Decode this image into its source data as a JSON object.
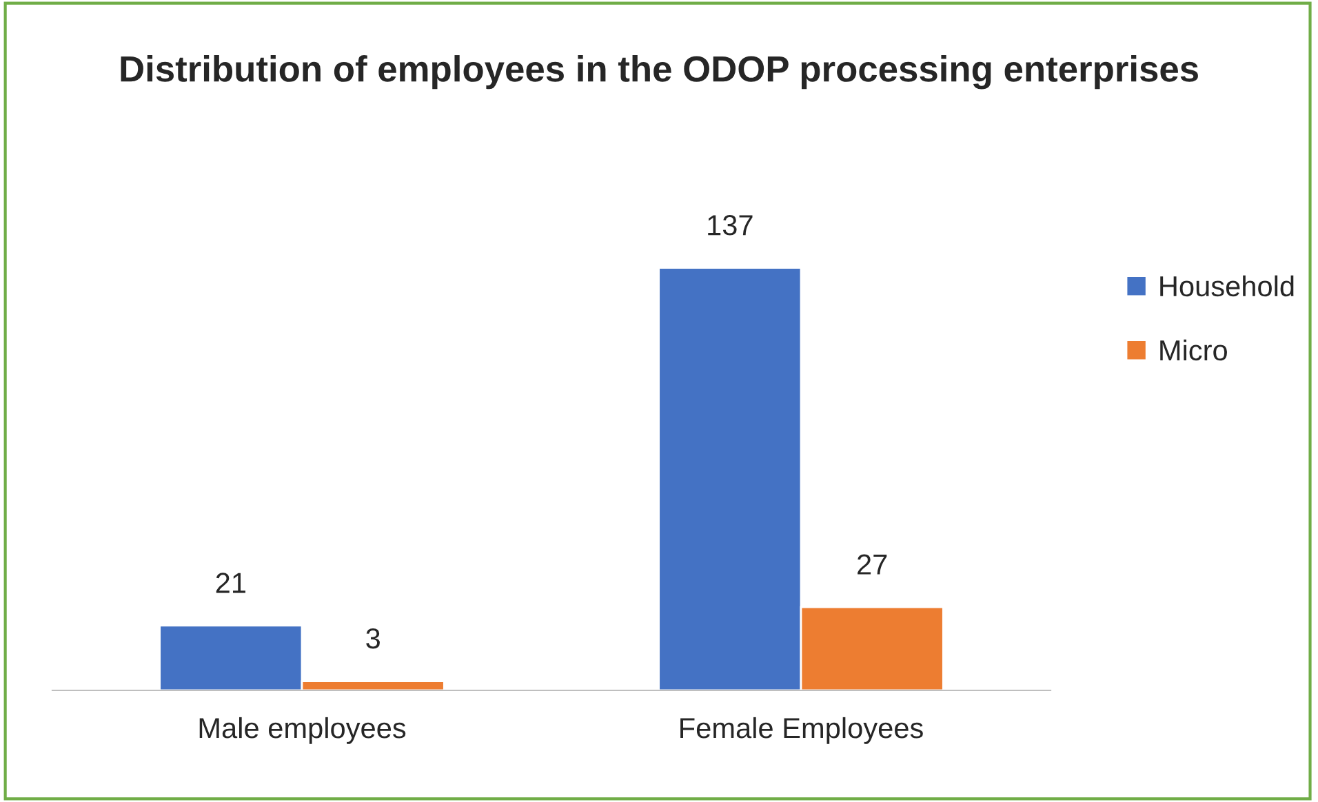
{
  "chart_data": {
    "type": "bar",
    "title": "Distribution of employees in the ODOP processing enterprises",
    "categories": [
      "Male employees",
      "Female Employees"
    ],
    "series": [
      {
        "name": "Household",
        "color": "#4472c4",
        "values": [
          21,
          137
        ]
      },
      {
        "name": "Micro",
        "color": "#ed7d31",
        "values": [
          3,
          27
        ]
      }
    ],
    "data_labels": true,
    "legend": "right",
    "grid": false
  }
}
